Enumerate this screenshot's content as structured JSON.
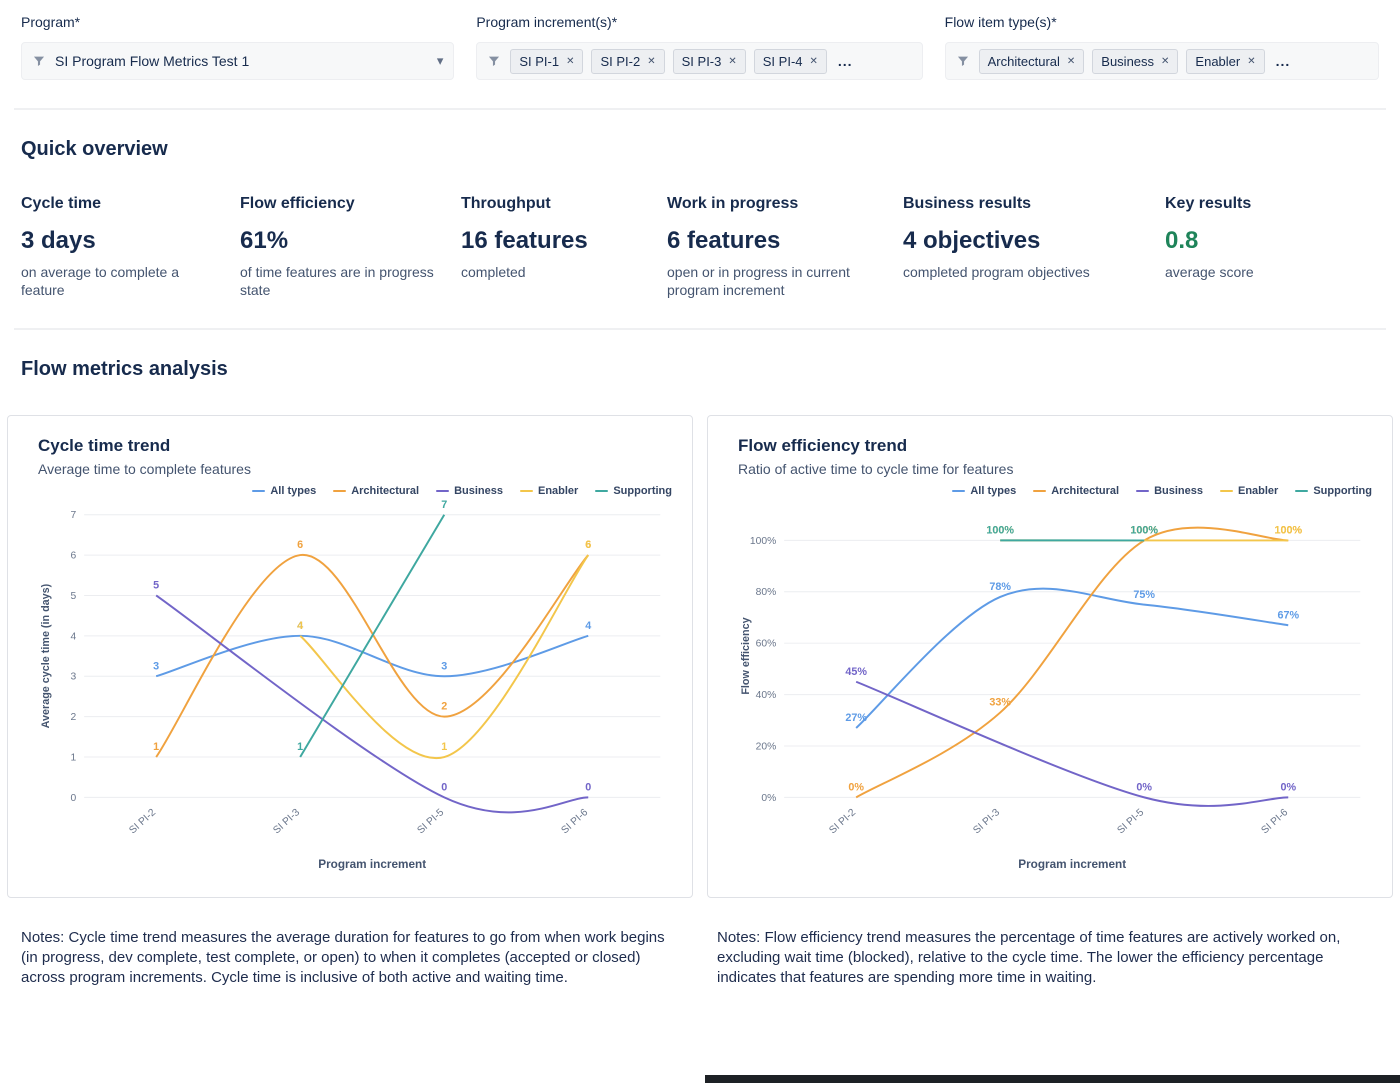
{
  "filters": {
    "program": {
      "label": "Program*",
      "value": "SI Program Flow Metrics Test 1"
    },
    "program_increments": {
      "label": "Program increment(s)*",
      "tags": [
        "SI PI-1",
        "SI PI-2",
        "SI PI-3",
        "SI PI-4"
      ],
      "more": "..."
    },
    "flow_item_types": {
      "label": "Flow item type(s)*",
      "tags": [
        "Architectural",
        "Business",
        "Enabler"
      ],
      "more": "..."
    }
  },
  "quick_overview": {
    "title": "Quick overview",
    "metrics": [
      {
        "label": "Cycle time",
        "value": "3 days",
        "description": "on average to complete a feature"
      },
      {
        "label": "Flow efficiency",
        "value": "61%",
        "description": "of time features are in progress state"
      },
      {
        "label": "Throughput",
        "value": "16 features",
        "description": "completed"
      },
      {
        "label": "Work in progress",
        "value": "6 features",
        "description": "open or in progress in current program increment"
      },
      {
        "label": "Business results",
        "value": "4 objectives",
        "description": "completed program objectives"
      },
      {
        "label": "Key results",
        "value": "0.8",
        "value_color": "#1F845A",
        "description": "average score"
      }
    ]
  },
  "flow_metrics": {
    "title": "Flow metrics analysis"
  },
  "chart_data": [
    {
      "type": "line",
      "title": "Cycle time trend",
      "subtitle": "Average time to complete features",
      "xlabel": "Program increment",
      "ylabel": "Average cycle time (in days)",
      "categories": [
        "SI PI-2",
        "SI PI-3",
        "SI PI-5",
        "SI PI-6"
      ],
      "ylim": [
        0,
        7
      ],
      "yticks": [
        0,
        1,
        2,
        3,
        4,
        5,
        6,
        7
      ],
      "tick_suffix": "",
      "value_suffix": "",
      "grid": true,
      "legend_position": "top-right",
      "series": [
        {
          "name": "All types",
          "color": "#5E9BE6",
          "values": [
            3,
            4,
            3,
            4
          ]
        },
        {
          "name": "Architectural",
          "color": "#F0A23F",
          "values": [
            1,
            6,
            2,
            6
          ]
        },
        {
          "name": "Business",
          "color": "#7265C8",
          "values": [
            5,
            null,
            0,
            0
          ]
        },
        {
          "name": "Enabler",
          "color": "#F3C64B",
          "values": [
            null,
            4,
            1,
            6
          ]
        },
        {
          "name": "Supporting",
          "color": "#3FA8A0",
          "values": [
            null,
            1,
            7,
            null
          ]
        }
      ],
      "note": "Notes: Cycle time trend measures the average duration for features to go from when work begins (in progress, dev complete, test complete, or open) to when it completes (accepted or closed) across program increments. Cycle time is inclusive of both active and waiting time."
    },
    {
      "type": "line",
      "title": "Flow efficiency trend",
      "subtitle": "Ratio of active time to cycle time for features",
      "xlabel": "Program increment",
      "ylabel": "Flow efficiency",
      "categories": [
        "SI PI-2",
        "SI PI-3",
        "SI PI-5",
        "SI PI-6"
      ],
      "ylim": [
        0,
        110
      ],
      "yticks": [
        0,
        20,
        40,
        60,
        80,
        100
      ],
      "tick_suffix": "%",
      "value_suffix": "%",
      "grid": true,
      "legend_position": "top-right",
      "series": [
        {
          "name": "All types",
          "color": "#5E9BE6",
          "values": [
            27,
            78,
            75,
            67
          ]
        },
        {
          "name": "Architectural",
          "color": "#F0A23F",
          "values": [
            0,
            33,
            100,
            100
          ]
        },
        {
          "name": "Business",
          "color": "#7265C8",
          "values": [
            45,
            null,
            0,
            0
          ]
        },
        {
          "name": "Enabler",
          "color": "#F3C64B",
          "values": [
            null,
            100,
            100,
            100
          ]
        },
        {
          "name": "Supporting",
          "color": "#3FA8A0",
          "values": [
            null,
            100,
            100,
            null
          ]
        }
      ],
      "note": "Notes: Flow efficiency trend measures the percentage of time features are actively worked on, excluding wait time (blocked), relative to the cycle time. The lower the efficiency percentage indicates that features are spending more time in waiting."
    }
  ]
}
